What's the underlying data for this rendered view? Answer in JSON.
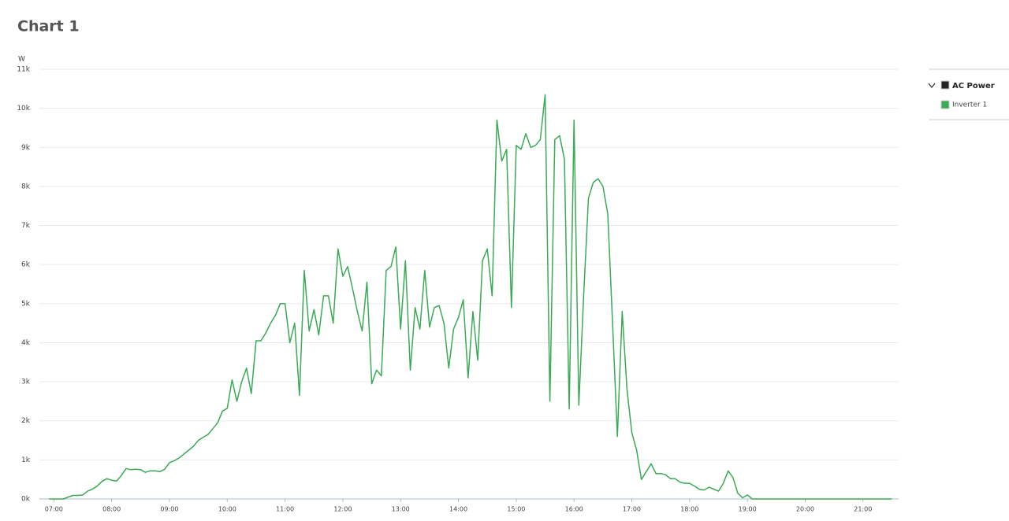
{
  "chart_data": {
    "type": "line",
    "title": "Chart 1",
    "y_label": "W",
    "legend_group": "AC Power",
    "xlim": [
      "06:45",
      "21:37"
    ],
    "xticks": [
      "07:00",
      "08:00",
      "09:00",
      "10:00",
      "11:00",
      "12:00",
      "13:00",
      "14:00",
      "15:00",
      "16:00",
      "17:00",
      "18:00",
      "19:00",
      "20:00",
      "21:00"
    ],
    "ylim": [
      0,
      11000
    ],
    "yticks": [
      {
        "value": 0,
        "label": "0k"
      },
      {
        "value": 1000,
        "label": "1k"
      },
      {
        "value": 2000,
        "label": "2k"
      },
      {
        "value": 3000,
        "label": "3k"
      },
      {
        "value": 4000,
        "label": "4k"
      },
      {
        "value": 5000,
        "label": "5k"
      },
      {
        "value": 6000,
        "label": "6k"
      },
      {
        "value": 7000,
        "label": "7k"
      },
      {
        "value": 8000,
        "label": "8k"
      },
      {
        "value": 9000,
        "label": "9k"
      },
      {
        "value": 10000,
        "label": "10k"
      },
      {
        "value": 11000,
        "label": "11k"
      }
    ],
    "grid": true,
    "x": [
      "06:55",
      "07:00",
      "07:05",
      "07:10",
      "07:15",
      "07:20",
      "07:25",
      "07:30",
      "07:35",
      "07:40",
      "07:45",
      "07:50",
      "07:55",
      "08:00",
      "08:05",
      "08:10",
      "08:15",
      "08:20",
      "08:25",
      "08:30",
      "08:35",
      "08:40",
      "08:45",
      "08:50",
      "08:55",
      "09:00",
      "09:05",
      "09:10",
      "09:15",
      "09:20",
      "09:25",
      "09:30",
      "09:35",
      "09:40",
      "09:45",
      "09:50",
      "09:55",
      "10:00",
      "10:05",
      "10:10",
      "10:15",
      "10:20",
      "10:25",
      "10:30",
      "10:35",
      "10:40",
      "10:45",
      "10:50",
      "10:55",
      "11:00",
      "11:05",
      "11:10",
      "11:15",
      "11:20",
      "11:25",
      "11:30",
      "11:35",
      "11:40",
      "11:45",
      "11:50",
      "11:55",
      "12:00",
      "12:05",
      "12:10",
      "12:15",
      "12:20",
      "12:25",
      "12:30",
      "12:35",
      "12:40",
      "12:45",
      "12:50",
      "12:55",
      "13:00",
      "13:05",
      "13:10",
      "13:15",
      "13:20",
      "13:25",
      "13:30",
      "13:35",
      "13:40",
      "13:45",
      "13:50",
      "13:55",
      "14:00",
      "14:05",
      "14:10",
      "14:15",
      "14:20",
      "14:25",
      "14:30",
      "14:35",
      "14:40",
      "14:45",
      "14:50",
      "14:55",
      "15:00",
      "15:05",
      "15:10",
      "15:15",
      "15:20",
      "15:25",
      "15:30",
      "15:35",
      "15:40",
      "15:45",
      "15:50",
      "15:55",
      "16:00",
      "16:05",
      "16:10",
      "16:15",
      "16:20",
      "16:25",
      "16:30",
      "16:35",
      "16:40",
      "16:45",
      "16:50",
      "16:55",
      "17:00",
      "17:05",
      "17:10",
      "17:15",
      "17:20",
      "17:25",
      "17:30",
      "17:35",
      "17:40",
      "17:45",
      "17:50",
      "17:55",
      "18:00",
      "18:05",
      "18:10",
      "18:15",
      "18:20",
      "18:25",
      "18:30",
      "18:35",
      "18:40",
      "18:45",
      "18:50",
      "18:55",
      "19:00",
      "19:05",
      "19:10",
      "21:30"
    ],
    "series": [
      {
        "name": "Inverter 1",
        "color": "#3aaa55",
        "values": [
          0,
          0,
          0,
          0,
          50,
          90,
          90,
          100,
          200,
          250,
          330,
          450,
          520,
          480,
          460,
          600,
          780,
          750,
          760,
          750,
          680,
          720,
          720,
          700,
          760,
          930,
          980,
          1050,
          1150,
          1250,
          1350,
          1500,
          1580,
          1650,
          1800,
          1950,
          2250,
          2320,
          3050,
          2500,
          3000,
          3350,
          2700,
          4050,
          4050,
          4250,
          4500,
          4700,
          5000,
          5000,
          4000,
          4500,
          2650,
          5850,
          4300,
          4850,
          4200,
          5200,
          5200,
          4500,
          6400,
          5700,
          5950,
          5400,
          4800,
          4300,
          5550,
          2950,
          3300,
          3150,
          5850,
          5950,
          6450,
          4350,
          6100,
          3300,
          4900,
          4350,
          5850,
          4400,
          4900,
          4950,
          4500,
          3350,
          4350,
          4650,
          5100,
          3100,
          4800,
          3550,
          6100,
          6400,
          5200,
          9700,
          8650,
          8950,
          4900,
          9050,
          8950,
          9350,
          9000,
          9050,
          9200,
          10350,
          2500,
          9200,
          9300,
          8700,
          2300,
          9700,
          2400,
          5200,
          7700,
          8100,
          8200,
          8000,
          7300,
          4500,
          1600,
          4800,
          2800,
          1700,
          1250,
          500,
          700,
          900,
          650,
          650,
          620,
          520,
          520,
          430,
          400,
          400,
          330,
          250,
          230,
          300,
          250,
          200,
          400,
          720,
          550,
          150,
          30,
          100,
          0,
          0,
          0
        ]
      }
    ]
  }
}
